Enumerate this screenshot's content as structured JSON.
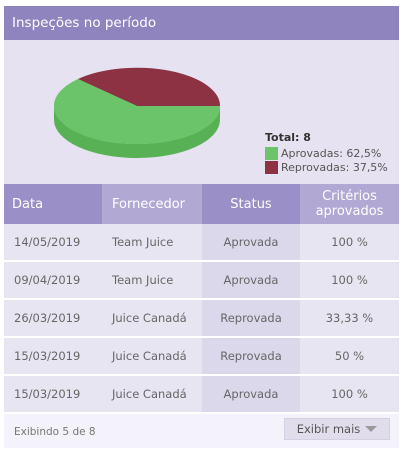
{
  "header": {
    "title": "Inspeções no período"
  },
  "chart_data": {
    "type": "pie",
    "total_label": "Total:",
    "total_value": "8",
    "slices": [
      {
        "name": "Aprovadas: 62,5%",
        "value": 62.5,
        "color": "#6cc46a"
      },
      {
        "name": "Reprovadas: 37,5%",
        "value": 37.5,
        "color": "#8c3242"
      }
    ]
  },
  "table": {
    "headers": [
      "Data",
      "Fornecedor",
      "Status",
      "Critérios aprovados"
    ],
    "rows": [
      [
        "14/05/2019",
        "Team Juice",
        "Aprovada",
        "100 %"
      ],
      [
        "09/04/2019",
        "Team Juice",
        "Aprovada",
        "100 %"
      ],
      [
        "26/03/2019",
        "Juice Canadá",
        "Reprovada",
        "33,33 %"
      ],
      [
        "15/03/2019",
        "Juice Canadá",
        "Reprovada",
        "50 %"
      ],
      [
        "15/03/2019",
        "Juice Canadá",
        "Aprovada",
        "100 %"
      ]
    ]
  },
  "footer": {
    "count_text": "Exibindo 5 de 8",
    "more_label": "Exibir mais"
  }
}
